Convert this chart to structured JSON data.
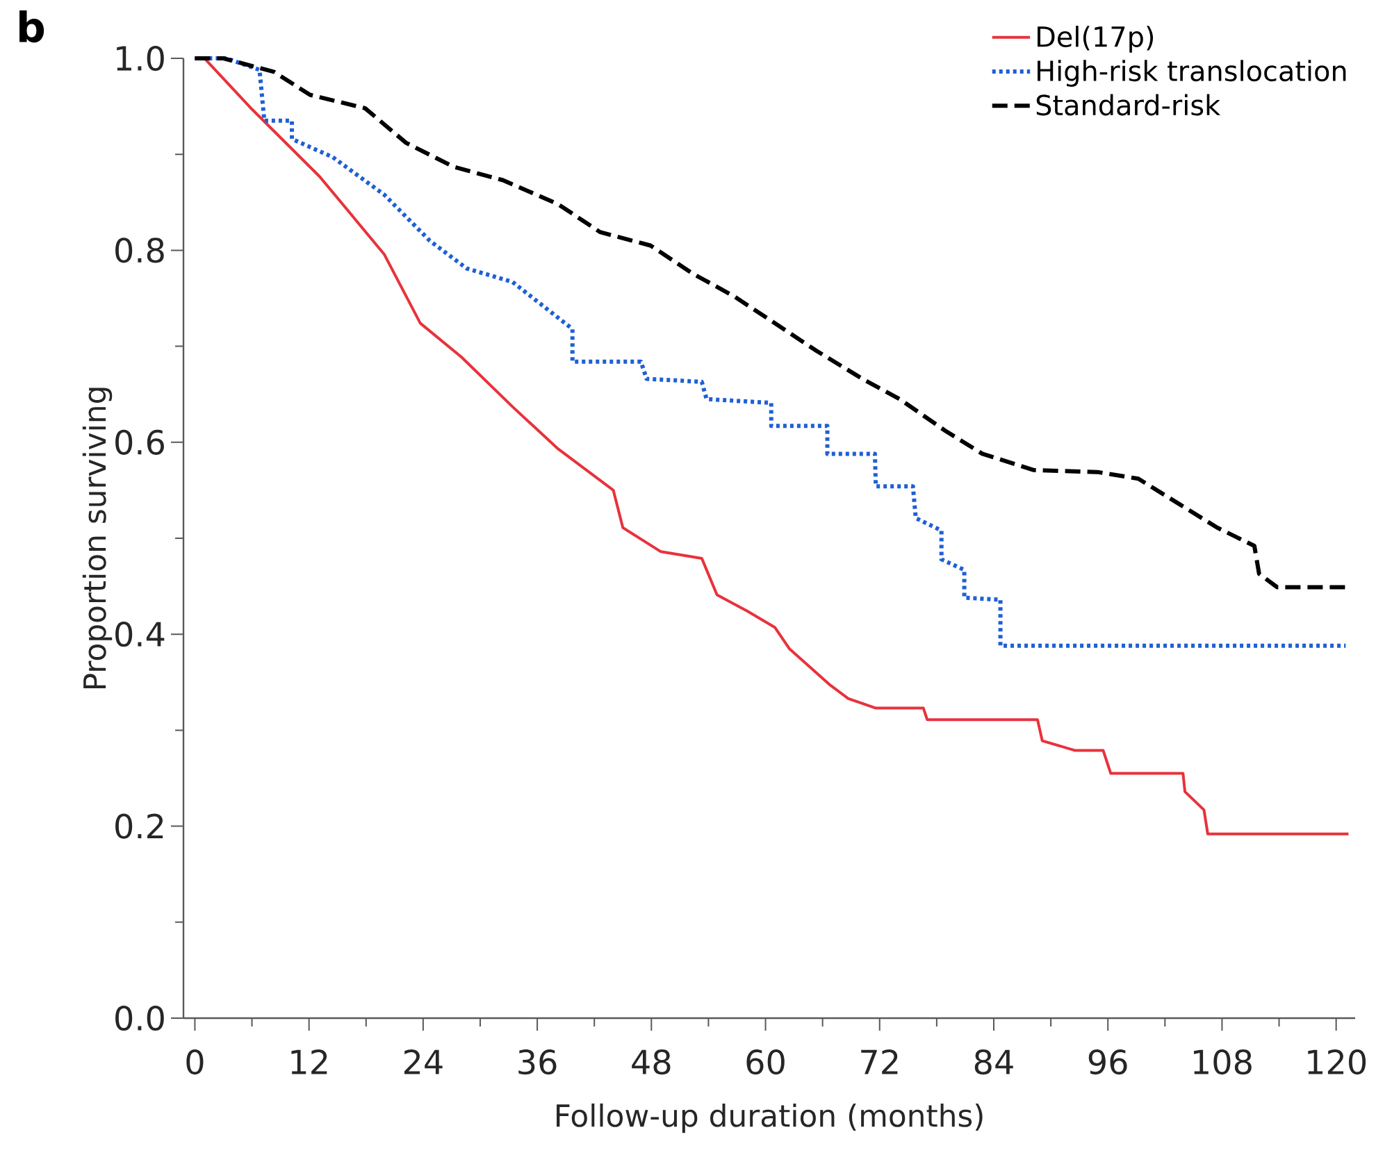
{
  "chart_data": {
    "type": "line",
    "xlabel": "Follow-up duration (months)",
    "ylabel": "Proportion surviving",
    "annotations": [
      "b"
    ],
    "xlim": [
      -1.2,
      122
    ],
    "ylim": [
      0,
      1
    ],
    "xticks": [
      0,
      {
        "value": 6,
        "label": null
      },
      12,
      {
        "value": 18,
        "label": null
      },
      24,
      {
        "value": 30,
        "label": null
      },
      36,
      {
        "value": 42,
        "label": null
      },
      48,
      {
        "value": 54,
        "label": null
      },
      60,
      {
        "value": 66,
        "label": null
      },
      72,
      {
        "value": 78,
        "label": null
      },
      84,
      {
        "value": 90,
        "label": null
      },
      96,
      {
        "value": 102,
        "label": null
      },
      108,
      {
        "value": 114,
        "label": null
      },
      120
    ],
    "yticks": [
      {
        "value": 0,
        "label": "0.0"
      },
      {
        "value": 0.1,
        "label": null
      },
      {
        "value": 0.2,
        "label": "0.2"
      },
      {
        "value": 0.3,
        "label": null
      },
      {
        "value": 0.4,
        "label": "0.4"
      },
      {
        "value": 0.5,
        "label": null
      },
      {
        "value": 0.6,
        "label": "0.6"
      },
      {
        "value": 0.7,
        "label": null
      },
      {
        "value": 0.8,
        "label": "0.8"
      },
      {
        "value": 0.9,
        "label": null
      },
      {
        "value": 1.0,
        "label": "1.0"
      }
    ],
    "legend": "top right",
    "grid": false,
    "marker": "none",
    "series": [
      {
        "name": "Del(17p)",
        "color": "#e8323c",
        "line_style": "solid",
        "x": [
          0,
          1.0,
          5.8,
          13.1,
          19.9,
          23.7,
          28.0,
          33.4,
          38.2,
          44.0,
          45.0,
          49.0,
          53.3,
          54.9,
          58.1,
          61.0,
          62.5,
          66.8,
          68.7,
          71.6,
          76.6,
          77.0,
          88.6,
          89.1,
          92.5,
          95.5,
          96.3,
          103.9,
          104.1,
          106.1,
          106.5,
          121.3
        ],
        "values": [
          1.0,
          1.0,
          0.949,
          0.877,
          0.796,
          0.724,
          0.689,
          0.637,
          0.593,
          0.55,
          0.511,
          0.486,
          0.479,
          0.441,
          0.424,
          0.407,
          0.385,
          0.347,
          0.333,
          0.323,
          0.323,
          0.311,
          0.311,
          0.289,
          0.279,
          0.279,
          0.255,
          0.255,
          0.236,
          0.217,
          0.192,
          0.192
        ]
      },
      {
        "name": "High-risk translocation",
        "color": "#1f5fd6",
        "line_style": "dotted",
        "x": [
          0,
          3.3,
          6.8,
          7.3,
          10.2,
          10.2,
          14.5,
          19.9,
          24.7,
          28.6,
          33.4,
          39.7,
          39.7,
          46.9,
          47.5,
          53.3,
          53.8,
          60.6,
          60.6,
          66.5,
          66.5,
          71.5,
          71.6,
          75.5,
          75.8,
          78.5,
          78.5,
          80.9,
          80.9,
          84.7,
          84.7,
          121.0
        ],
        "values": [
          1.0,
          1.0,
          0.988,
          0.935,
          0.935,
          0.916,
          0.897,
          0.858,
          0.81,
          0.781,
          0.767,
          0.718,
          0.684,
          0.684,
          0.666,
          0.663,
          0.645,
          0.641,
          0.617,
          0.617,
          0.588,
          0.588,
          0.554,
          0.554,
          0.521,
          0.508,
          0.478,
          0.467,
          0.438,
          0.436,
          0.388,
          0.388
        ]
      },
      {
        "name": "Standard-risk",
        "color": "#000000",
        "line_style": "dashed",
        "x": [
          0,
          3.0,
          8.3,
          12.1,
          17.9,
          22.2,
          27.2,
          32.4,
          38.2,
          42.6,
          47.9,
          52.3,
          56.7,
          61.0,
          65.4,
          70.2,
          74.1,
          78.9,
          82.8,
          88.2,
          94.9,
          99.2,
          103.6,
          107.5,
          111.4,
          111.9,
          113.8,
          121.6
        ],
        "values": [
          1.0,
          1.0,
          0.986,
          0.962,
          0.948,
          0.912,
          0.887,
          0.873,
          0.848,
          0.819,
          0.805,
          0.776,
          0.752,
          0.724,
          0.695,
          0.666,
          0.645,
          0.612,
          0.588,
          0.571,
          0.569,
          0.562,
          0.535,
          0.511,
          0.492,
          0.463,
          0.449,
          0.449
        ]
      }
    ]
  }
}
